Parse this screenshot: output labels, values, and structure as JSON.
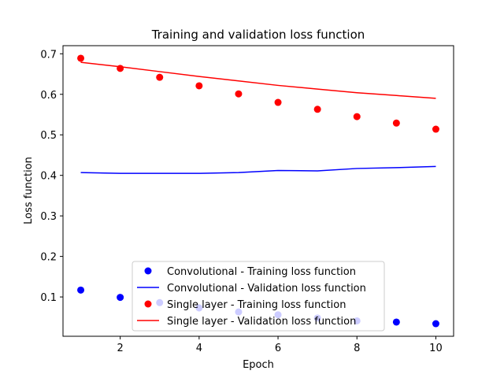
{
  "chart_data": {
    "type": "scatter",
    "title": "Training and validation loss function",
    "xlabel": "Epoch",
    "ylabel": "Loss function",
    "xlim": [
      0.55,
      10.45
    ],
    "ylim": [
      0.003,
      0.72
    ],
    "xticks": [
      2,
      4,
      6,
      8,
      10
    ],
    "yticks": [
      0.1,
      0.2,
      0.3,
      0.4,
      0.5,
      0.6,
      0.7
    ],
    "grid": false,
    "legend_position": "lower-center",
    "x": [
      1,
      2,
      3,
      4,
      5,
      6,
      7,
      8,
      9,
      10
    ],
    "series": [
      {
        "name": "Convolutional - Training loss function",
        "style": "markers",
        "color": "#0000ff",
        "values": [
          0.117,
          0.099,
          0.086,
          0.073,
          0.063,
          0.056,
          0.048,
          0.041,
          0.038,
          0.034
        ]
      },
      {
        "name": "Convolutional - Validation loss function",
        "style": "line",
        "color": "#0000ff",
        "values": [
          0.407,
          0.405,
          0.405,
          0.405,
          0.407,
          0.412,
          0.411,
          0.417,
          0.419,
          0.422
        ]
      },
      {
        "name": "Single layer - Training loss function",
        "style": "markers",
        "color": "#ff0000",
        "values": [
          0.689,
          0.664,
          0.642,
          0.621,
          0.601,
          0.58,
          0.563,
          0.545,
          0.529,
          0.514
        ]
      },
      {
        "name": "Single layer - Validation loss function",
        "style": "line",
        "color": "#ff0000",
        "values": [
          0.679,
          0.668,
          0.656,
          0.644,
          0.633,
          0.622,
          0.613,
          0.604,
          0.597,
          0.59
        ]
      }
    ]
  }
}
